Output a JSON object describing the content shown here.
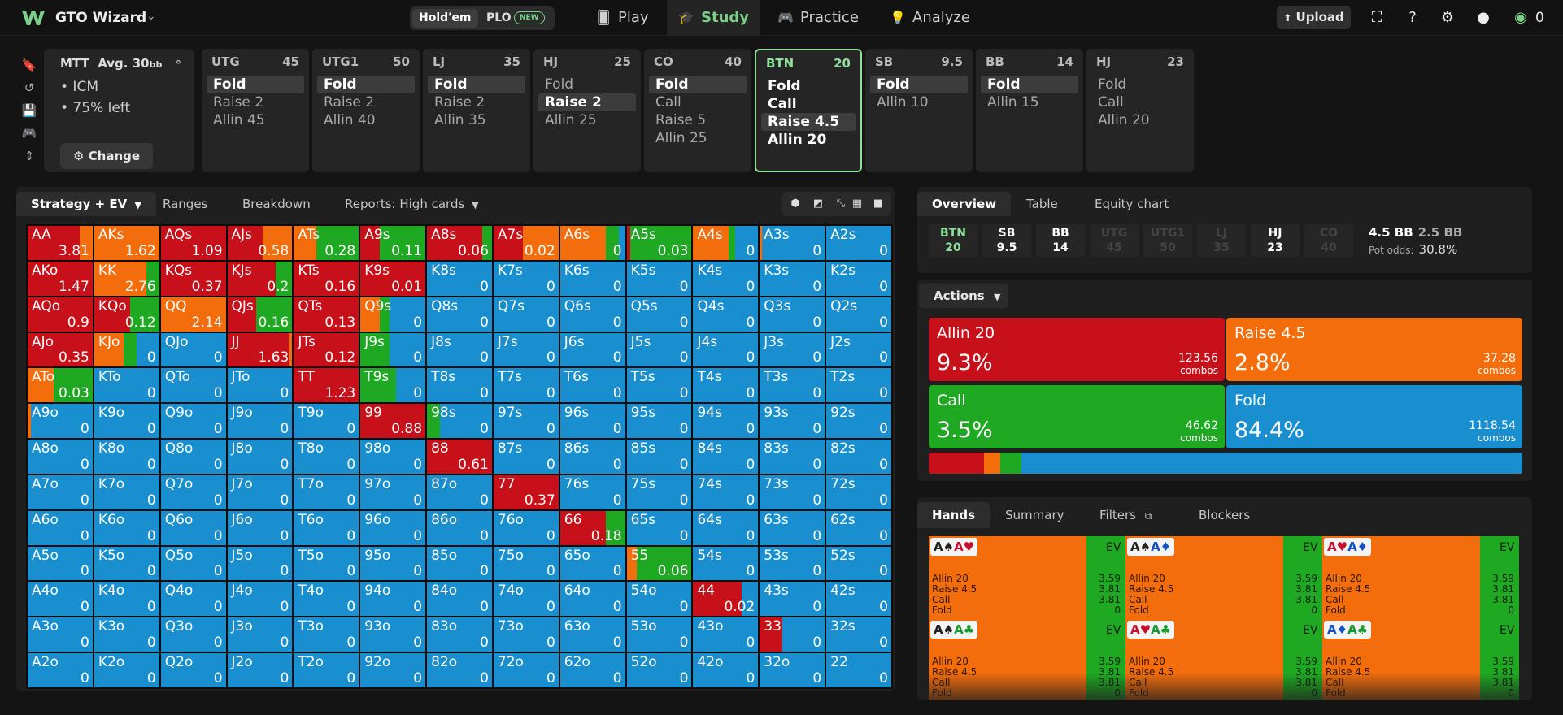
{
  "app": {
    "name": "GTO Wizard",
    "credits": "0"
  },
  "game_toggle": {
    "holdem": "Hold'em",
    "plo": "PLO",
    "plo_badge": "NEW"
  },
  "nav": {
    "play": "Play",
    "study": "Study",
    "practice": "Practice",
    "analyze": "Analyze",
    "upload": "Upload"
  },
  "colors": {
    "fold": "#1a8fd0",
    "call": "#1fa822",
    "raise": "#f36d0d",
    "allin": "#c8101a",
    "active_accent": "#8fe09c"
  },
  "game": {
    "title": "MTT",
    "avg": "Avg. 30",
    "avg_unit": "bb",
    "bullet1": "• ICM",
    "bullet2": "• 75% left",
    "change": "Change"
  },
  "positions": [
    {
      "name": "UTG",
      "stack": "45",
      "actions": [
        "Fold",
        "Raise 2",
        "Allin 45"
      ],
      "selected": 0
    },
    {
      "name": "UTG1",
      "stack": "50",
      "actions": [
        "Fold",
        "Raise 2",
        "Allin 40"
      ],
      "selected": 0
    },
    {
      "name": "LJ",
      "stack": "35",
      "actions": [
        "Fold",
        "Raise 2",
        "Allin 35"
      ],
      "selected": 0
    },
    {
      "name": "HJ",
      "stack": "25",
      "actions": [
        "Fold",
        "Raise 2",
        "Allin 25"
      ],
      "selected": 1
    },
    {
      "name": "CO",
      "stack": "40",
      "actions": [
        "Fold",
        "Call",
        "Raise 5",
        "Allin 25"
      ],
      "selected": 0
    },
    {
      "name": "BTN",
      "stack": "20",
      "actions": [
        "Fold",
        "Call",
        "Raise 4.5",
        "Allin 20"
      ],
      "selected": 2,
      "active": true
    },
    {
      "name": "SB",
      "stack": "9.5",
      "actions": [
        "Fold",
        "Allin 10"
      ],
      "selected": 0
    },
    {
      "name": "BB",
      "stack": "14",
      "actions": [
        "Fold",
        "Allin 15"
      ],
      "selected": 0
    },
    {
      "name": "HJ",
      "stack": "23",
      "actions": [
        "Fold",
        "Call",
        "Allin 20"
      ],
      "selected": -1
    }
  ],
  "left_tabs": {
    "strategy": "Strategy + EV",
    "ranges": "Ranges",
    "breakdown": "Breakdown",
    "reports": "Reports: High cards"
  },
  "matrix": {
    "hands": [
      [
        "AA",
        "AKs",
        "AQs",
        "AJs",
        "ATs",
        "A9s",
        "A8s",
        "A7s",
        "A6s",
        "A5s",
        "A4s",
        "A3s",
        "A2s"
      ],
      [
        "AKo",
        "KK",
        "KQs",
        "KJs",
        "KTs",
        "K9s",
        "K8s",
        "K7s",
        "K6s",
        "K5s",
        "K4s",
        "K3s",
        "K2s"
      ],
      [
        "AQo",
        "KQo",
        "QQ",
        "QJs",
        "QTs",
        "Q9s",
        "Q8s",
        "Q7s",
        "Q6s",
        "Q5s",
        "Q4s",
        "Q3s",
        "Q2s"
      ],
      [
        "AJo",
        "KJo",
        "QJo",
        "JJ",
        "JTs",
        "J9s",
        "J8s",
        "J7s",
        "J6s",
        "J5s",
        "J4s",
        "J3s",
        "J2s"
      ],
      [
        "ATo",
        "KTo",
        "QTo",
        "JTo",
        "TT",
        "T9s",
        "T8s",
        "T7s",
        "T6s",
        "T5s",
        "T4s",
        "T3s",
        "T2s"
      ],
      [
        "A9o",
        "K9o",
        "Q9o",
        "J9o",
        "T9o",
        "99",
        "98s",
        "97s",
        "96s",
        "95s",
        "94s",
        "93s",
        "92s"
      ],
      [
        "A8o",
        "K8o",
        "Q8o",
        "J8o",
        "T8o",
        "98o",
        "88",
        "87s",
        "86s",
        "85s",
        "84s",
        "83s",
        "82s"
      ],
      [
        "A7o",
        "K7o",
        "Q7o",
        "J7o",
        "T7o",
        "97o",
        "87o",
        "77",
        "76s",
        "75s",
        "74s",
        "73s",
        "72s"
      ],
      [
        "A6o",
        "K6o",
        "Q6o",
        "J6o",
        "T6o",
        "96o",
        "86o",
        "76o",
        "66",
        "65s",
        "64s",
        "63s",
        "62s"
      ],
      [
        "A5o",
        "K5o",
        "Q5o",
        "J5o",
        "T5o",
        "95o",
        "85o",
        "75o",
        "65o",
        "55",
        "54s",
        "53s",
        "52s"
      ],
      [
        "A4o",
        "K4o",
        "Q4o",
        "J4o",
        "T4o",
        "94o",
        "84o",
        "74o",
        "64o",
        "54o",
        "44",
        "43s",
        "42s"
      ],
      [
        "A3o",
        "K3o",
        "Q3o",
        "J3o",
        "T3o",
        "93o",
        "83o",
        "73o",
        "63o",
        "53o",
        "43o",
        "33",
        "32s"
      ],
      [
        "A2o",
        "K2o",
        "Q2o",
        "J2o",
        "T2o",
        "92o",
        "82o",
        "72o",
        "62o",
        "52o",
        "42o",
        "32o",
        "22"
      ]
    ],
    "ev": [
      [
        "3.81",
        "1.62",
        "1.09",
        "0.58",
        "0.28",
        "0.11",
        "0.06",
        "0.02",
        "0",
        "0.03",
        "0",
        "0",
        "0"
      ],
      [
        "1.47",
        "2.76",
        "0.37",
        "0.2",
        "0.16",
        "0.01",
        "0",
        "0",
        "0",
        "0",
        "0",
        "0",
        "0"
      ],
      [
        "0.9",
        "0.12",
        "2.14",
        "0.16",
        "0.13",
        "0",
        "0",
        "0",
        "0",
        "0",
        "0",
        "0",
        "0"
      ],
      [
        "0.35",
        "0",
        "0",
        "1.63",
        "0.12",
        "0",
        "0",
        "0",
        "0",
        "0",
        "0",
        "0",
        "0"
      ],
      [
        "0.03",
        "0",
        "0",
        "0",
        "1.23",
        "0",
        "0",
        "0",
        "0",
        "0",
        "0",
        "0",
        "0"
      ],
      [
        "0",
        "0",
        "0",
        "0",
        "0",
        "0.88",
        "0",
        "0",
        "0",
        "0",
        "0",
        "0",
        "0"
      ],
      [
        "0",
        "0",
        "0",
        "0",
        "0",
        "0",
        "0.61",
        "0",
        "0",
        "0",
        "0",
        "0",
        "0"
      ],
      [
        "0",
        "0",
        "0",
        "0",
        "0",
        "0",
        "0",
        "0.37",
        "0",
        "0",
        "0",
        "0",
        "0"
      ],
      [
        "0",
        "0",
        "0",
        "0",
        "0",
        "0",
        "0",
        "0",
        "0.18",
        "0",
        "0",
        "0",
        "0"
      ],
      [
        "0",
        "0",
        "0",
        "0",
        "0",
        "0",
        "0",
        "0",
        "0",
        "0.06",
        "0",
        "0",
        "0"
      ],
      [
        "0",
        "0",
        "0",
        "0",
        "0",
        "0",
        "0",
        "0",
        "0",
        "0",
        "0.02",
        "0",
        "0"
      ],
      [
        "0",
        "0",
        "0",
        "0",
        "0",
        "0",
        "0",
        "0",
        "0",
        "0",
        "0",
        "0",
        "0"
      ],
      [
        "0",
        "0",
        "0",
        "0",
        "0",
        "0",
        "0",
        "0",
        "0",
        "0",
        "0",
        "0",
        "0"
      ]
    ],
    "strategy": {
      "AA": [
        0.8,
        0.2,
        0,
        0
      ],
      "AKs": [
        0,
        1,
        0,
        0
      ],
      "AQs": [
        1,
        0,
        0,
        0
      ],
      "AJs": [
        0.55,
        0.45,
        0,
        0
      ],
      "ATs": [
        0,
        0.35,
        0.65,
        0
      ],
      "A9s": [
        0.3,
        0,
        0.7,
        0
      ],
      "A8s": [
        0.85,
        0,
        0.15,
        0
      ],
      "A7s": [
        0.45,
        0.55,
        0,
        0
      ],
      "A6s": [
        0,
        0.7,
        0.2,
        0.1
      ],
      "A5s": [
        0.05,
        0,
        0.95,
        0
      ],
      "A4s": [
        0,
        0.55,
        0.1,
        0.35
      ],
      "A3s": [
        0,
        0.03,
        0,
        0.97
      ],
      "AKo": [
        1,
        0,
        0,
        0
      ],
      "KK": [
        0,
        0.8,
        0.2,
        0
      ],
      "KQs": [
        1,
        0,
        0,
        0
      ],
      "KJs": [
        0.75,
        0,
        0.25,
        0
      ],
      "KTs": [
        1,
        0,
        0,
        0
      ],
      "K9s": [
        1,
        0,
        0,
        0
      ],
      "AQo": [
        1,
        0,
        0,
        0
      ],
      "KQo": [
        0.55,
        0,
        0.45,
        0
      ],
      "QQ": [
        0,
        1,
        0,
        0
      ],
      "QJs": [
        0.45,
        0,
        0.55,
        0
      ],
      "QTs": [
        1,
        0,
        0,
        0
      ],
      "Q9s": [
        0,
        0.3,
        0.15,
        0.55
      ],
      "AJo": [
        1,
        0,
        0,
        0
      ],
      "KJo": [
        0,
        0.45,
        0.2,
        0.35
      ],
      "JJ": [
        0.95,
        0.05,
        0,
        0
      ],
      "JTs": [
        1,
        0,
        0,
        0
      ],
      "J9s": [
        0,
        0,
        0.45,
        0.55
      ],
      "ATo": [
        0,
        0.4,
        0.6,
        0
      ],
      "TT": [
        1,
        0,
        0,
        0
      ],
      "T9s": [
        0,
        0,
        0.55,
        0.45
      ],
      "A9o": [
        0,
        0.05,
        0,
        0.95
      ],
      "99": [
        1,
        0,
        0,
        0
      ],
      "98s": [
        0,
        0,
        0.2,
        0.8
      ],
      "88": [
        1,
        0,
        0,
        0
      ],
      "77": [
        1,
        0,
        0,
        0
      ],
      "66": [
        0.7,
        0,
        0.3,
        0
      ],
      "55": [
        0,
        0.15,
        0.85,
        0
      ],
      "44": [
        0.75,
        0,
        0,
        0.25
      ],
      "33": [
        0.35,
        0,
        0,
        0.65
      ]
    }
  },
  "right_tabs": {
    "overview": "Overview",
    "table": "Table",
    "equity": "Equity chart"
  },
  "overview_positions": [
    {
      "name": "BTN",
      "stack": "20",
      "state": "active"
    },
    {
      "name": "SB",
      "stack": "9.5",
      "state": "normal"
    },
    {
      "name": "BB",
      "stack": "14",
      "state": "normal"
    },
    {
      "name": "UTG",
      "stack": "45",
      "state": "dim"
    },
    {
      "name": "UTG1",
      "stack": "50",
      "state": "dim"
    },
    {
      "name": "LJ",
      "stack": "35",
      "state": "dim"
    },
    {
      "name": "HJ",
      "stack": "23",
      "state": "normal"
    },
    {
      "name": "CO",
      "stack": "40",
      "state": "dim"
    }
  ],
  "pot": {
    "pot": "4.5 BB",
    "to_call": "2.5 BB",
    "odds_label": "Pot odds:",
    "odds": "30.8%"
  },
  "actions_label": "Actions",
  "action_summary": [
    {
      "name": "Allin 20",
      "pct": "9.3%",
      "combos": "123.56",
      "unit": "combos",
      "color": "#c8101a",
      "frac": 0.093
    },
    {
      "name": "Raise 4.5",
      "pct": "2.8%",
      "combos": "37.28",
      "unit": "combos",
      "color": "#f36d0d",
      "frac": 0.028
    },
    {
      "name": "Call",
      "pct": "3.5%",
      "combos": "46.62",
      "unit": "combos",
      "color": "#1fa822",
      "frac": 0.035
    },
    {
      "name": "Fold",
      "pct": "84.4%",
      "combos": "1118.54",
      "unit": "combos",
      "color": "#1a8fd0",
      "frac": 0.844
    }
  ],
  "hands_tabs": {
    "hands": "Hands",
    "summary": "Summary",
    "filters": "Filters",
    "blockers": "Blockers"
  },
  "hand_cards": [
    {
      "r1": "A",
      "s1": "♠",
      "c1": "blk",
      "r2": "A",
      "s2": "♥",
      "c2": "red"
    },
    {
      "r1": "A",
      "s1": "♠",
      "c1": "blk",
      "r2": "A",
      "s2": "♦",
      "c2": "blu"
    },
    {
      "r1": "A",
      "s1": "♥",
      "c1": "red",
      "r2": "A",
      "s2": "♦",
      "c2": "blu"
    },
    {
      "r1": "A",
      "s1": "♠",
      "c1": "blk",
      "r2": "A",
      "s2": "♣",
      "c2": "grn"
    },
    {
      "r1": "A",
      "s1": "♥",
      "c1": "red",
      "r2": "A",
      "s2": "♣",
      "c2": "grn"
    },
    {
      "r1": "A",
      "s1": "♦",
      "c1": "blu",
      "r2": "A",
      "s2": "♣",
      "c2": "grn"
    }
  ],
  "hand_card_text": {
    "ev": "EV",
    "lines": [
      "Allin 20",
      "Raise 4.5",
      "Call",
      "Fold"
    ],
    "vals": [
      "3.59",
      "3.81",
      "3.81",
      "0"
    ]
  }
}
